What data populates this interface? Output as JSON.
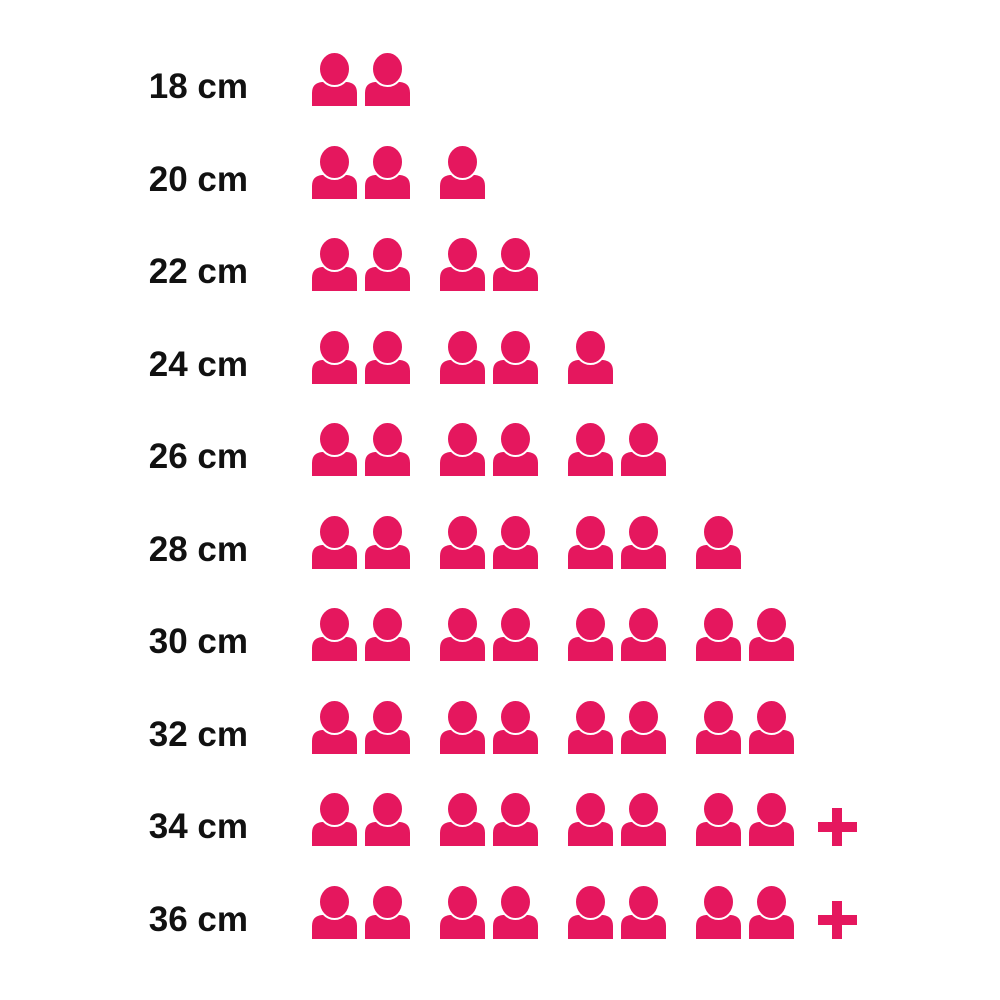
{
  "chart_data": {
    "type": "pictogram",
    "icon": "person-icon",
    "overflow_marker": "plus-icon",
    "color": "#E5175E",
    "rows": [
      {
        "label": "18 cm",
        "count": 2,
        "more": false
      },
      {
        "label": "20 cm",
        "count": 3,
        "more": false
      },
      {
        "label": "22 cm",
        "count": 4,
        "more": false
      },
      {
        "label": "24 cm",
        "count": 5,
        "more": false
      },
      {
        "label": "26 cm",
        "count": 6,
        "more": false
      },
      {
        "label": "28 cm",
        "count": 7,
        "more": false
      },
      {
        "label": "30 cm",
        "count": 8,
        "more": false
      },
      {
        "label": "32 cm",
        "count": 8,
        "more": false
      },
      {
        "label": "34 cm",
        "count": 8,
        "more": true
      },
      {
        "label": "36 cm",
        "count": 8,
        "more": true
      }
    ]
  }
}
